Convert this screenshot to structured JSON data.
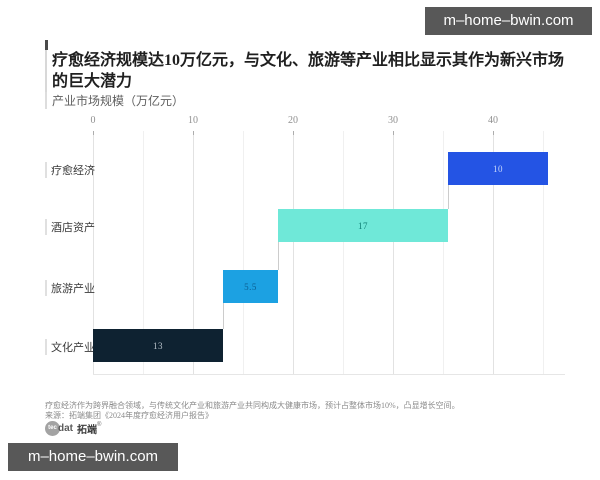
{
  "watermark": {
    "text": "m–home–bwin.com"
  },
  "header": {
    "title": "疗愈经济规模达10万亿元，与文化、旅游等产业相比显示其作为新兴市场的巨大潜力",
    "subtitle": "产业市场规模（万亿元）"
  },
  "chart_data": {
    "type": "bar",
    "subtype": "horizontal-waterfall",
    "title": "疗愈经济规模达10万亿元，与文化、旅游等产业相比显示其作为新兴市场的巨大潜力",
    "subtitle_axis_label": "产业市场规模（万亿元）",
    "categories": [
      "疗愈经济",
      "酒店资产",
      "旅游产业",
      "文化产业"
    ],
    "values": [
      10,
      17,
      5.5,
      13
    ],
    "bar_starts": [
      35.5,
      18.5,
      13,
      0
    ],
    "value_labels": [
      "10",
      "17",
      "5.5",
      "13"
    ],
    "bar_colors": [
      "#2454e4",
      "#6fe8d8",
      "#1ca1e2",
      "#0e2231"
    ],
    "value_label_colors": [
      "#c9d9fb",
      "#0d7f74",
      "#0b5f93",
      "#b9c3cb"
    ],
    "x_ticks": [
      0,
      10,
      20,
      30,
      40
    ],
    "xlim": [
      0,
      47
    ],
    "gridline_step": 5,
    "grid": "vertical",
    "legend": "none",
    "orientation": "horizontal"
  },
  "footnote": {
    "line1": "疗愈经济作为跨界融合领域，与传统文化产业和旅游产业共同构成大健康市场，预计占整体市场10%，凸显增长空间。",
    "line2": "来源：拓端集团《2024年度疗愈经济用户报告》"
  },
  "logo": {
    "badge": "tec",
    "suffix": "dat",
    "brand": "拓端",
    "reg": "®"
  }
}
